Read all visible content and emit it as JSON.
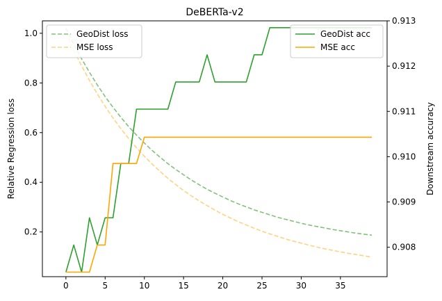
{
  "chart_data": {
    "type": "line",
    "title": "DeBERTa-v2",
    "xlabel": "",
    "ylabel_left": "Relative Regression loss",
    "ylabel_right": "Downstream accuracy",
    "xlim": [
      -3.0,
      40.95
    ],
    "ylim_left": [
      0.02,
      1.05
    ],
    "ylim_right": [
      0.90735,
      0.913
    ],
    "x_ticks": [
      0,
      5,
      10,
      15,
      20,
      25,
      30,
      35
    ],
    "y_ticks_left": [
      0.2,
      0.4,
      0.6,
      0.8,
      1.0
    ],
    "y_ticks_left_labels": [
      "0.2",
      "0.4",
      "0.6",
      "0.8",
      "1.0"
    ],
    "y_ticks_right": [
      0.908,
      0.909,
      0.91,
      0.911,
      0.912,
      0.913
    ],
    "y_ticks_right_labels": [
      "0.908",
      "0.909",
      "0.910",
      "0.911",
      "0.912",
      "0.913"
    ],
    "grid": false,
    "colors": {
      "geodist_acc": "#2ca02c",
      "mse_acc": "#ffa500",
      "geodist_loss": "#82c17a",
      "mse_loss": "#ffd27f"
    },
    "legend_left": {
      "placement": "upper left",
      "entries": [
        {
          "label": "GeoDist loss",
          "series": "geodist_loss"
        },
        {
          "label": "MSE loss",
          "series": "mse_loss"
        }
      ]
    },
    "legend_right": {
      "placement": "upper right",
      "entries": [
        {
          "label": "GeoDist acc",
          "series": "geodist_acc"
        },
        {
          "label": "MSE acc",
          "series": "mse_acc"
        }
      ]
    },
    "series": [
      {
        "name": "GeoDist loss",
        "key": "geodist_loss",
        "axis": "left",
        "style": "dashed",
        "x": [
          0,
          1,
          2,
          3,
          4,
          5,
          6,
          7,
          8,
          9,
          10,
          11,
          12,
          13,
          14,
          15,
          16,
          17,
          18,
          19,
          20,
          21,
          22,
          23,
          24,
          25,
          26,
          27,
          28,
          29,
          30,
          31,
          32,
          33,
          34,
          35,
          36,
          37,
          38,
          39
        ],
        "values": [
          1.02,
          0.956,
          0.897,
          0.843,
          0.792,
          0.745,
          0.702,
          0.662,
          0.624,
          0.59,
          0.558,
          0.528,
          0.501,
          0.475,
          0.452,
          0.43,
          0.409,
          0.39,
          0.372,
          0.356,
          0.341,
          0.326,
          0.313,
          0.301,
          0.289,
          0.279,
          0.269,
          0.259,
          0.251,
          0.243,
          0.235,
          0.228,
          0.222,
          0.216,
          0.21,
          0.205,
          0.2,
          0.195,
          0.191,
          0.187
        ]
      },
      {
        "name": "MSE loss",
        "key": "mse_loss",
        "axis": "left",
        "style": "dashed",
        "x": [
          0,
          1,
          2,
          3,
          4,
          5,
          6,
          7,
          8,
          9,
          10,
          11,
          12,
          13,
          14,
          15,
          16,
          17,
          18,
          19,
          20,
          21,
          22,
          23,
          24,
          25,
          26,
          27,
          28,
          29,
          30,
          31,
          32,
          33,
          34,
          35,
          36,
          37,
          38,
          39
        ],
        "values": [
          1.0,
          0.932,
          0.869,
          0.81,
          0.756,
          0.706,
          0.659,
          0.616,
          0.576,
          0.539,
          0.505,
          0.473,
          0.444,
          0.416,
          0.391,
          0.367,
          0.345,
          0.325,
          0.306,
          0.288,
          0.271,
          0.256,
          0.241,
          0.228,
          0.215,
          0.203,
          0.192,
          0.182,
          0.172,
          0.163,
          0.155,
          0.147,
          0.139,
          0.132,
          0.126,
          0.12,
          0.114,
          0.109,
          0.104,
          0.099
        ]
      },
      {
        "name": "GeoDist acc",
        "key": "geodist_acc",
        "axis": "right",
        "style": "solid",
        "x": [
          0,
          1,
          2,
          3,
          4,
          5,
          6,
          7,
          8,
          9,
          10,
          11,
          12,
          13,
          14,
          15,
          16,
          17,
          18,
          19,
          20,
          21,
          22,
          23,
          24,
          25,
          26,
          27,
          28,
          29,
          30,
          31,
          32,
          33,
          34,
          35,
          36,
          37,
          38,
          39
        ],
        "values": [
          0.90745,
          0.90805,
          0.90745,
          0.90865,
          0.90805,
          0.90865,
          0.90865,
          0.90985,
          0.90985,
          0.91105,
          0.91105,
          0.91105,
          0.91105,
          0.91105,
          0.91165,
          0.91165,
          0.91165,
          0.91165,
          0.91225,
          0.91165,
          0.91165,
          0.91165,
          0.91165,
          0.91165,
          0.91225,
          0.91225,
          0.91285,
          0.91285,
          0.91285,
          0.91285,
          0.91285,
          0.91285,
          0.91285,
          0.91285,
          0.91285,
          0.91285,
          0.91285,
          0.91285,
          0.91285,
          0.91285
        ]
      },
      {
        "name": "MSE acc",
        "key": "mse_acc",
        "axis": "right",
        "style": "solid",
        "x": [
          0,
          1,
          2,
          3,
          4,
          5,
          6,
          7,
          8,
          9,
          10,
          11,
          12,
          13,
          14,
          15,
          16,
          17,
          18,
          19,
          20,
          21,
          22,
          23,
          24,
          25,
          26,
          27,
          28,
          29,
          30,
          31,
          32,
          33,
          34,
          35,
          36,
          37,
          38,
          39
        ],
        "values": [
          0.90745,
          0.90745,
          0.90745,
          0.90745,
          0.90805,
          0.90805,
          0.90985,
          0.90985,
          0.90985,
          0.90985,
          0.91043,
          0.91043,
          0.91043,
          0.91043,
          0.91043,
          0.91043,
          0.91043,
          0.91043,
          0.91043,
          0.91043,
          0.91043,
          0.91043,
          0.91043,
          0.91043,
          0.91043,
          0.91043,
          0.91043,
          0.91043,
          0.91043,
          0.91043,
          0.91043,
          0.91043,
          0.91043,
          0.91043,
          0.91043,
          0.91043,
          0.91043,
          0.91043,
          0.91043,
          0.91043
        ]
      }
    ]
  }
}
